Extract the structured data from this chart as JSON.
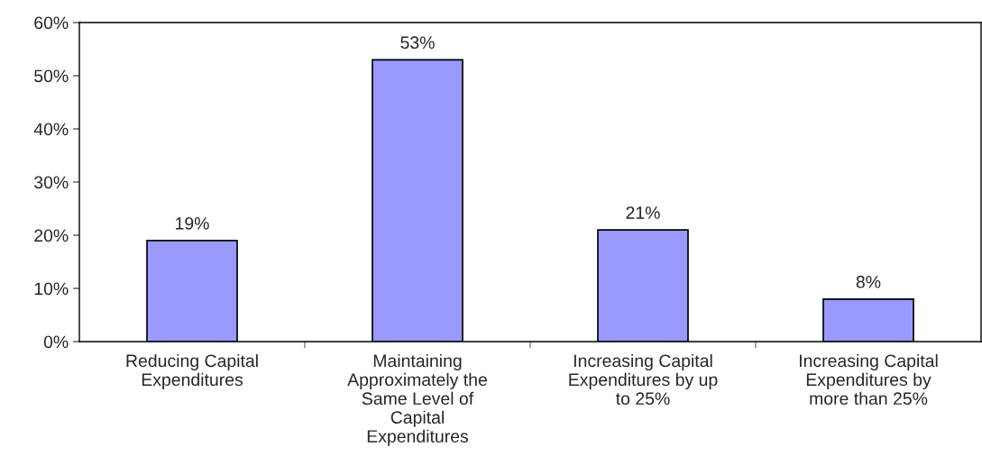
{
  "chart_data": {
    "type": "bar",
    "categories": [
      "Reducing Capital Expenditures",
      "Maintaining Approximately the Same Level of Capital Expenditures",
      "Increasing Capital Expenditures by up to 25%",
      "Increasing Capital Expenditures by more than 25%"
    ],
    "values": [
      19,
      53,
      21,
      8
    ],
    "value_labels": [
      "19%",
      "53%",
      "21%",
      "8%"
    ],
    "color": "#9999ff",
    "ylim": [
      0,
      60
    ],
    "yticks": [
      {
        "value": 0,
        "label": "0%"
      },
      {
        "value": 10,
        "label": "10%"
      },
      {
        "value": 20,
        "label": "20%"
      },
      {
        "value": 30,
        "label": "30%"
      },
      {
        "value": 40,
        "label": "40%"
      },
      {
        "value": 50,
        "label": "50%"
      },
      {
        "value": 60,
        "label": "60%"
      }
    ],
    "grid": false
  }
}
